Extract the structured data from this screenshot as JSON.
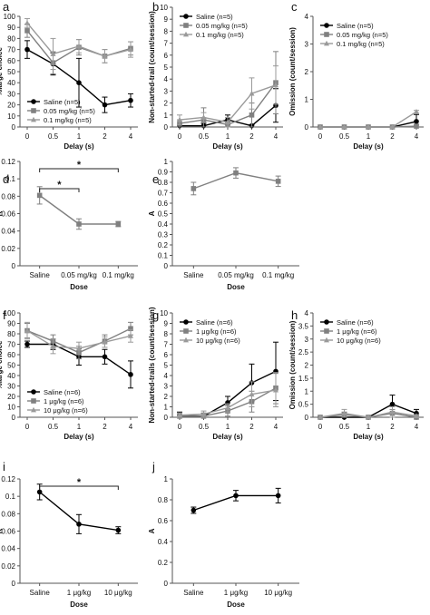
{
  "colors": {
    "Saline": "#000000",
    "mid": "#808080",
    "high": "#9a9a9a",
    "axis": "#555555"
  },
  "chart_data": [
    {
      "panel": "a",
      "type": "line",
      "x": [
        "0",
        "0.5",
        "1",
        "2",
        "4"
      ],
      "xlabel": "Delay (s)",
      "ylabel": "%large choice",
      "ylim": [
        0,
        100
      ],
      "yticks": [
        "0",
        "10",
        "20",
        "30",
        "40",
        "50",
        "60",
        "70",
        "80",
        "90",
        "100"
      ],
      "legend_position": "bottom-left",
      "series": [
        {
          "name": "Saline (n=5)",
          "marker": "circle",
          "values": [
            70,
            57,
            40,
            20,
            24
          ],
          "errors": [
            8,
            10,
            22,
            7,
            6
          ]
        },
        {
          "name": "0.05 mg/kg (n=5)",
          "marker": "square",
          "values": [
            87,
            58,
            72,
            64,
            71
          ],
          "errors": [
            6,
            10,
            7,
            6,
            6
          ]
        },
        {
          "name": "0.1 mg/kg (n=5)",
          "marker": "triangle",
          "values": [
            94,
            66,
            73,
            64,
            70
          ],
          "errors": [
            4,
            14,
            6,
            6,
            7
          ]
        }
      ]
    },
    {
      "panel": "b",
      "type": "line",
      "x": [
        "0",
        "0.5",
        "1",
        "2",
        "4"
      ],
      "xlabel": "Delay (s)",
      "ylabel": "Non-started-trail (count/session)",
      "ylim": [
        0,
        10
      ],
      "yticks": [
        "0",
        "1",
        "2",
        "3",
        "4",
        "5",
        "6",
        "7",
        "8",
        "9",
        "10"
      ],
      "legend_position": "top-left",
      "series": [
        {
          "name": "Saline (n=5)",
          "marker": "circle",
          "values": [
            0.1,
            0.1,
            0.6,
            0.1,
            1.8
          ],
          "errors": [
            0.1,
            0.2,
            0.4,
            0.1,
            1.4
          ]
        },
        {
          "name": "0.05 mg/kg (n=5)",
          "marker": "square",
          "values": [
            0.3,
            0.6,
            0.2,
            1.0,
            3.7
          ],
          "errors": [
            0.3,
            1.0,
            0.2,
            1.0,
            2.6
          ]
        },
        {
          "name": "0.1 mg/kg (n=5)",
          "marker": "triangle",
          "values": [
            0.6,
            0.8,
            0.4,
            2.8,
            3.5
          ],
          "errors": [
            0.4,
            0.4,
            0.4,
            1.3,
            1.6
          ]
        }
      ]
    },
    {
      "panel": "c",
      "type": "line",
      "x": [
        "0",
        "0.5",
        "1",
        "2",
        "4"
      ],
      "xlabel": "Delay (s)",
      "ylabel": "Omission (count/session)",
      "ylim": [
        0,
        4
      ],
      "yticks": [
        "0",
        "1",
        "2",
        "3",
        "4"
      ],
      "legend_position": "top-left",
      "series": [
        {
          "name": "Saline (n=5)",
          "marker": "circle",
          "values": [
            0,
            0,
            0,
            0,
            0.2
          ],
          "errors": [
            0,
            0,
            0,
            0,
            0.25
          ]
        },
        {
          "name": "0.05 mg/kg (n=5)",
          "marker": "square",
          "values": [
            0,
            0,
            0,
            0,
            0.03
          ],
          "errors": [
            0,
            0,
            0,
            0,
            0.04
          ]
        },
        {
          "name": "0.1 mg/kg (n=5)",
          "marker": "triangle",
          "values": [
            0,
            0,
            0,
            0,
            0.55
          ],
          "errors": [
            0,
            0,
            0,
            0,
            0.05
          ]
        }
      ]
    },
    {
      "panel": "d",
      "type": "line",
      "categories": [
        "Saline",
        "0.05 mg/kg",
        "0.1 mg/kg"
      ],
      "xlabel": "Dose",
      "ylabel": "K",
      "ylim": [
        0,
        0.12
      ],
      "yticks": [
        "0",
        "0.02",
        "0.04",
        "0.06",
        "0.08",
        "0.1",
        "0.12"
      ],
      "series": [
        {
          "marker": "square",
          "values": [
            0.081,
            0.048,
            0.048
          ],
          "errors": [
            0.01,
            0.006,
            0.003
          ]
        }
      ],
      "annotations": [
        "*",
        "*"
      ]
    },
    {
      "panel": "e",
      "type": "line",
      "categories": [
        "Saline",
        "0.05 mg/kg",
        "0.1 mg/kg"
      ],
      "xlabel": "Dose",
      "ylabel": "A",
      "ylim": [
        0,
        1
      ],
      "yticks": [
        "0",
        "0.1",
        "0.2",
        "0.3",
        "0.4",
        "0.5",
        "0.6",
        "0.7",
        "0.8",
        "0.9",
        "1"
      ],
      "series": [
        {
          "marker": "square",
          "values": [
            0.74,
            0.89,
            0.81
          ],
          "errors": [
            0.06,
            0.05,
            0.05
          ]
        }
      ]
    },
    {
      "panel": "f",
      "type": "line",
      "x": [
        "0",
        "0.5",
        "1",
        "2",
        "4"
      ],
      "xlabel": "Delay (s)",
      "ylabel": "%large choice",
      "ylim": [
        0,
        100
      ],
      "yticks": [
        "0",
        "10",
        "20",
        "30",
        "40",
        "50",
        "60",
        "70",
        "80",
        "90",
        "100"
      ],
      "legend_position": "bottom-left",
      "series": [
        {
          "name": "Saline (n=6)",
          "marker": "circle",
          "values": [
            70,
            70,
            58,
            58,
            41
          ],
          "errors": [
            3,
            5,
            8,
            7,
            13
          ]
        },
        {
          "name": "1 μg/kg (n=6)",
          "marker": "square",
          "values": [
            83,
            73,
            62,
            73,
            85
          ],
          "errors": [
            7,
            6,
            6,
            6,
            6
          ]
        },
        {
          "name": "10  μg/kg (n=6)",
          "marker": "triangle",
          "values": [
            83,
            68,
            66,
            72,
            78
          ],
          "errors": [
            8,
            7,
            6,
            5,
            6
          ]
        }
      ]
    },
    {
      "panel": "g",
      "type": "line",
      "x": [
        "0",
        "0.5",
        "1",
        "2",
        "4"
      ],
      "xlabel": "Delay (s)",
      "ylabel": "Non-started-trails (count/session)",
      "ylim": [
        0,
        10
      ],
      "yticks": [
        "0",
        "1",
        "2",
        "3",
        "4",
        "5",
        "6",
        "7",
        "8",
        "9",
        "10"
      ],
      "legend_position": "top-left",
      "series": [
        {
          "name": "Saline (n=6)",
          "marker": "circle",
          "values": [
            0.2,
            0.1,
            1.4,
            3.3,
            4.4
          ],
          "errors": [
            0.3,
            0.3,
            0.6,
            1.8,
            2.8
          ]
        },
        {
          "name": "1 μg/kg (n=6)",
          "marker": "square",
          "values": [
            0.1,
            0.1,
            0.6,
            1.5,
            2.8
          ],
          "errors": [
            0.1,
            0.3,
            0.5,
            1.0,
            1.5
          ]
        },
        {
          "name": "10 μg/kg (n=6)",
          "marker": "triangle",
          "values": [
            0.2,
            0.3,
            0.9,
            2.2,
            2.6
          ],
          "errors": [
            0.2,
            0.3,
            0.4,
            1.2,
            1.6
          ]
        }
      ]
    },
    {
      "panel": "h",
      "type": "line",
      "x": [
        "0",
        "0.5",
        "1",
        "2",
        "4"
      ],
      "xlabel": "Delay (s)",
      "ylabel": "Omission (count/session)",
      "ylim": [
        0,
        4
      ],
      "yticks": [
        "0",
        "0.5",
        "1",
        "1.5",
        "2",
        "2.5",
        "3",
        "3.5",
        "4"
      ],
      "legend_position": "top-left",
      "series": [
        {
          "name": "Saline (n=6)",
          "marker": "circle",
          "values": [
            0,
            0,
            0,
            0.5,
            0.15
          ],
          "errors": [
            0,
            0,
            0,
            0.35,
            0.15
          ]
        },
        {
          "name": "1 μg/kg (n=6)",
          "marker": "square",
          "values": [
            0,
            0.1,
            0,
            0.15,
            0
          ],
          "errors": [
            0,
            0.1,
            0,
            0.15,
            0
          ]
        },
        {
          "name": "10 μg/kg (n=6)",
          "marker": "triangle",
          "values": [
            0,
            0.15,
            0,
            0.2,
            0.05
          ],
          "errors": [
            0,
            0.15,
            0,
            0.2,
            0.05
          ]
        }
      ]
    },
    {
      "panel": "i",
      "type": "line",
      "categories": [
        "Saline",
        "1 μg/kg",
        "10 μg/kg"
      ],
      "xlabel": "Dose",
      "ylabel": "K",
      "ylim": [
        0,
        0.12
      ],
      "yticks": [
        "0",
        "0.02",
        "0.04",
        "0.06",
        "0.08",
        "0.1",
        "0.12"
      ],
      "series": [
        {
          "marker": "circle",
          "values": [
            0.105,
            0.068,
            0.061
          ],
          "errors": [
            0.009,
            0.011,
            0.004
          ]
        }
      ],
      "annotations": [
        "*"
      ]
    },
    {
      "panel": "j",
      "type": "line",
      "categories": [
        "Saline",
        "1 μg/kg",
        "10 μg/kg"
      ],
      "xlabel": "Dose",
      "ylabel": "A",
      "ylim": [
        0,
        1
      ],
      "yticks": [
        "0",
        "0.2",
        "0.4",
        "0.6",
        "0.8",
        "1"
      ],
      "series": [
        {
          "marker": "circle",
          "values": [
            0.7,
            0.84,
            0.84
          ],
          "errors": [
            0.03,
            0.05,
            0.07
          ]
        }
      ]
    }
  ]
}
